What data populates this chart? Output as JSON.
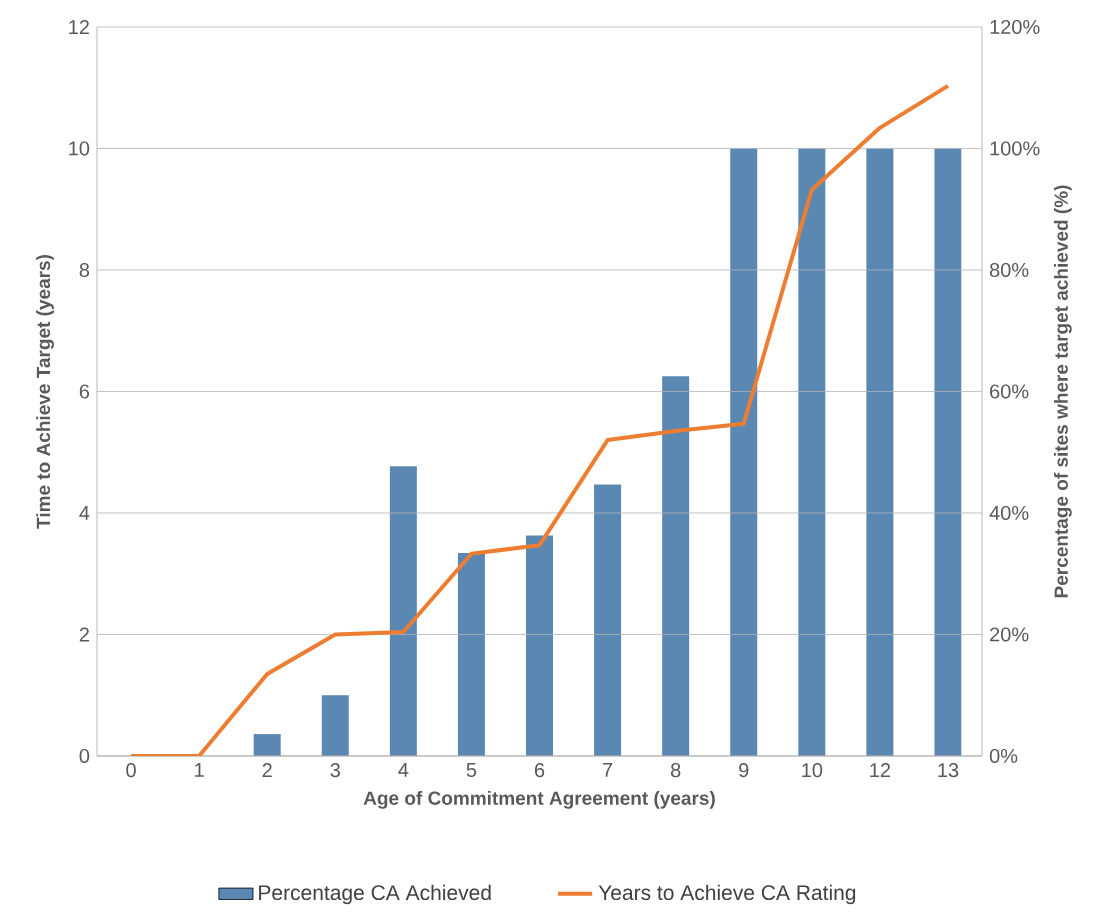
{
  "chart_data": {
    "type": "bar",
    "xlabel": "Age of Commitment Agreement (years)",
    "ylabel": "Time to Achieve Target (years)",
    "y2label": "Percentage of sites where target achieved (%)",
    "categories": [
      "0",
      "1",
      "2",
      "3",
      "4",
      "5",
      "6",
      "7",
      "8",
      "9",
      "10",
      "12",
      "13"
    ],
    "series": [
      {
        "name": "Percentage CA Achieved",
        "axis": "y2",
        "color": "#5b87b3",
        "values": [
          0,
          0,
          3.6,
          10,
          47.7,
          33.4,
          36.3,
          44.7,
          62.5,
          100,
          100,
          100,
          100
        ]
      },
      {
        "name": "Years to Achieve CA Rating",
        "type": "line",
        "axis": "y",
        "color": "#ed7d31",
        "values": [
          0,
          0,
          1.35,
          2.0,
          2.04,
          3.33,
          3.47,
          5.2,
          5.35,
          5.47,
          9.32,
          10.34,
          11.03
        ]
      }
    ],
    "ylim": [
      0,
      12
    ],
    "yticks": [
      0,
      2,
      4,
      6,
      8,
      10,
      12
    ],
    "y2lim": [
      0,
      120
    ],
    "y2ticks": [
      {
        "value": 0,
        "label": "0%"
      },
      {
        "value": 20,
        "label": "20%"
      },
      {
        "value": 40,
        "label": "40%"
      },
      {
        "value": 60,
        "label": "60%"
      },
      {
        "value": 80,
        "label": "80%"
      },
      {
        "value": 100,
        "label": "100%"
      },
      {
        "value": 120,
        "label": "120%"
      }
    ],
    "grid": "y",
    "legend": "bottom"
  }
}
